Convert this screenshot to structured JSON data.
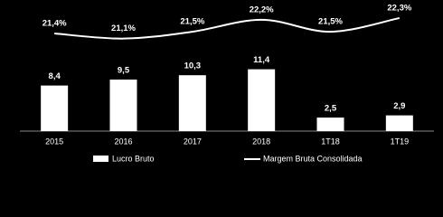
{
  "chart_data": {
    "type": "bar",
    "categories": [
      "2015",
      "2016",
      "2017",
      "2018",
      "1T18",
      "1T19"
    ],
    "series": [
      {
        "name": "Lucro Bruto",
        "type": "bar",
        "color": "#ffffff",
        "values": [
          8.4,
          9.5,
          10.3,
          11.4,
          2.5,
          2.9
        ],
        "value_labels": [
          "8,4",
          "9,5",
          "10,3",
          "11,4",
          "2,5",
          "2,9"
        ]
      },
      {
        "name": "Margem Bruta Consolidada",
        "type": "line",
        "axis": "y2",
        "color": "#ffffff",
        "values": [
          21.4,
          21.1,
          21.5,
          22.2,
          21.5,
          22.3
        ],
        "value_labels": [
          "21,4%",
          "21,1%",
          "21,5%",
          "22,2%",
          "21,5%",
          "22,3%"
        ]
      }
    ],
    "ylim": [
      0,
      24
    ],
    "y2lim": [
      15.7,
      23.3
    ]
  }
}
